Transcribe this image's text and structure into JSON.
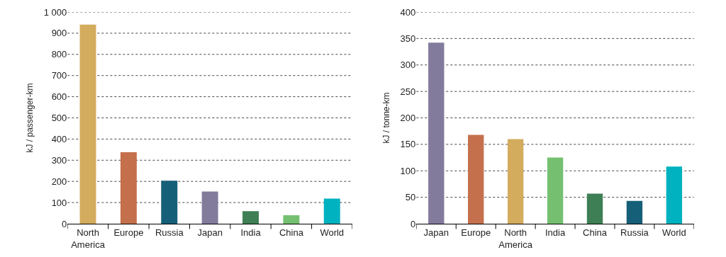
{
  "chart_data": [
    {
      "type": "bar",
      "ylabel": "kJ / passenger-km",
      "categories": [
        "North America",
        "Europe",
        "Russia",
        "Japan",
        "India",
        "China",
        "World"
      ],
      "values": [
        941,
        338,
        203,
        152,
        59,
        40,
        119
      ],
      "colors": [
        "#d4ac5e",
        "#c5704d",
        "#165f78",
        "#837b9c",
        "#3e7f55",
        "#75c070",
        "#00b2bf"
      ],
      "ylim": [
        0,
        1000
      ],
      "yticks": [
        0,
        100,
        200,
        300,
        400,
        500,
        600,
        700,
        800,
        900,
        {
          "value": 1000,
          "label": "1 000"
        }
      ],
      "grid": "y"
    },
    {
      "type": "bar",
      "ylabel": "kJ / tonne-km",
      "categories": [
        "Japan",
        "Europe",
        "North America",
        "India",
        "China",
        "Russia",
        "World"
      ],
      "values": [
        342,
        168,
        160,
        125,
        57,
        43,
        108
      ],
      "colors": [
        "#837b9c",
        "#c5704d",
        "#d4ac5e",
        "#75c070",
        "#3e7f55",
        "#165f78",
        "#00b2bf"
      ],
      "ylim": [
        0,
        400
      ],
      "yticks": [
        0,
        50,
        100,
        150,
        200,
        250,
        300,
        350,
        400
      ],
      "grid": "y"
    }
  ]
}
